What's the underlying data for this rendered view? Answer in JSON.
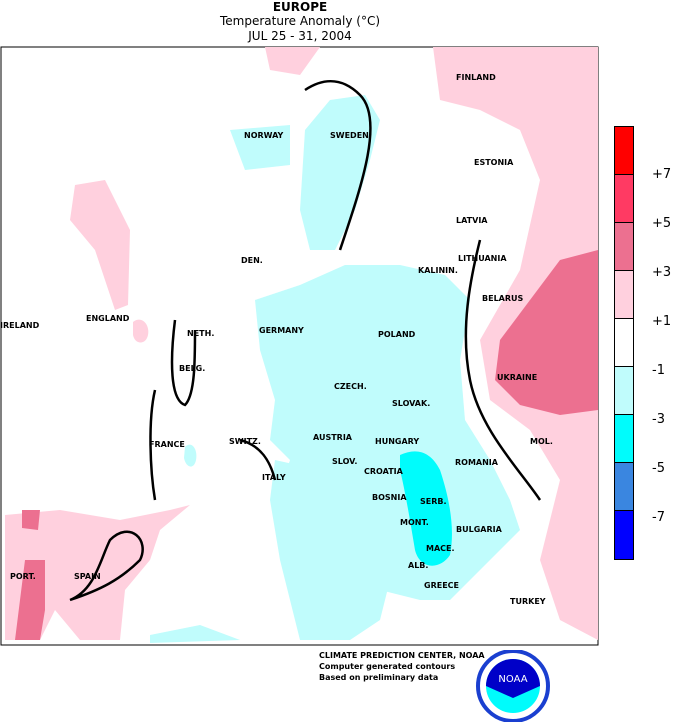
{
  "header": {
    "region": "EUROPE",
    "variable": "Temperature Anomaly (°C)",
    "period": "JUL 25 - 31, 2004"
  },
  "legend": {
    "bins": [
      {
        "color": "#ff0000"
      },
      {
        "color": "#ff3a63"
      },
      {
        "color": "#ec7090"
      },
      {
        "color": "#ffd0de"
      },
      {
        "color": "#ffffff"
      },
      {
        "color": "#c0fcfc"
      },
      {
        "color": "#00fcfc"
      },
      {
        "color": "#3a86e0"
      },
      {
        "color": "#0000ff"
      }
    ],
    "ticks": [
      "+7",
      "+5",
      "+3",
      "+1",
      "-1",
      "-3",
      "-5",
      "-7"
    ]
  },
  "countries": [
    "FINLAND",
    "NORWAY",
    "SWEDEN",
    "ESTONIA",
    "LATVIA",
    "LITHUANIA",
    "KALININ.",
    "DEN.",
    "BELARUS",
    "ENGLAND",
    "IRELAND",
    "NETH.",
    "GERMANY",
    "POLAND",
    "BELG.",
    "UKRAINE",
    "CZECH.",
    "SLOVAK.",
    "AUSTRIA",
    "HUNGARY",
    "FRANCE",
    "SWITZ.",
    "MOL.",
    "ROMANIA",
    "SLOV.",
    "CROATIA",
    "ITALY",
    "BOSNIA",
    "SERB.",
    "MONT.",
    "BULGARIA",
    "MACE.",
    "SPAIN",
    "PORT.",
    "ALB.",
    "GREECE",
    "TURKEY"
  ],
  "credits": {
    "line1": "CLIMATE PREDICTION CENTER, NOAA",
    "line2": "Computer generated contours",
    "line3": "Based on preliminary data"
  },
  "logo": {
    "text": "NOAA"
  }
}
